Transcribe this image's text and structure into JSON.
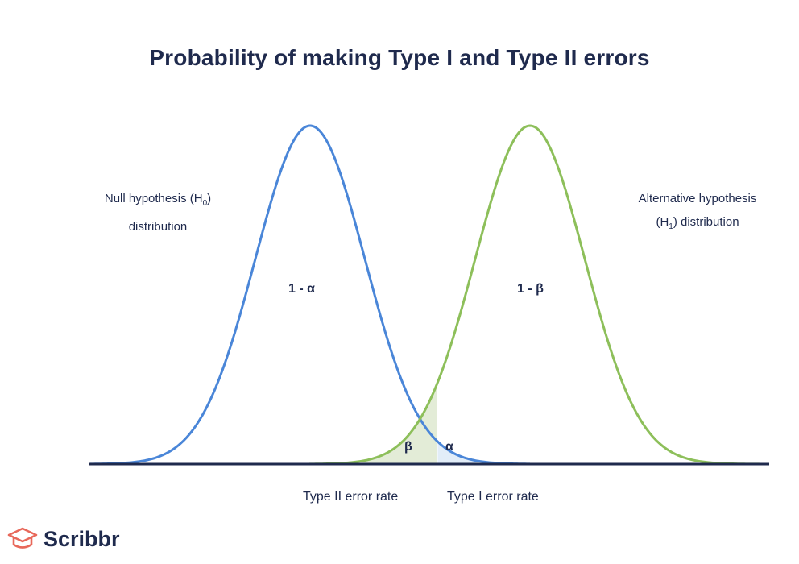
{
  "title": "Probability of making Type I and Type II errors",
  "null_label": {
    "line1": "Null hypothesis (H",
    "sub": "0",
    "line1_end": ")",
    "line2": "distribution"
  },
  "alt_label": {
    "line1": "Alternative hypothesis",
    "line2_start": "(H",
    "sub": "1",
    "line2_end": ") distribution"
  },
  "regions": {
    "one_minus_alpha": "1 - α",
    "one_minus_beta": "1 - β",
    "beta": "β",
    "alpha": "α"
  },
  "error_rates": {
    "type2": "Type II error rate",
    "type1": "Type I error rate"
  },
  "logo": {
    "name": "Scribbr",
    "icon": "graduation-cap-icon"
  },
  "colors": {
    "null_curve": "#4a86d8",
    "alt_curve": "#8dbf5a",
    "beta_fill": "#e3ecd7",
    "alpha_fill": "#e2edf8",
    "axis": "#1f2a4d",
    "text": "#1f2a4d"
  }
}
